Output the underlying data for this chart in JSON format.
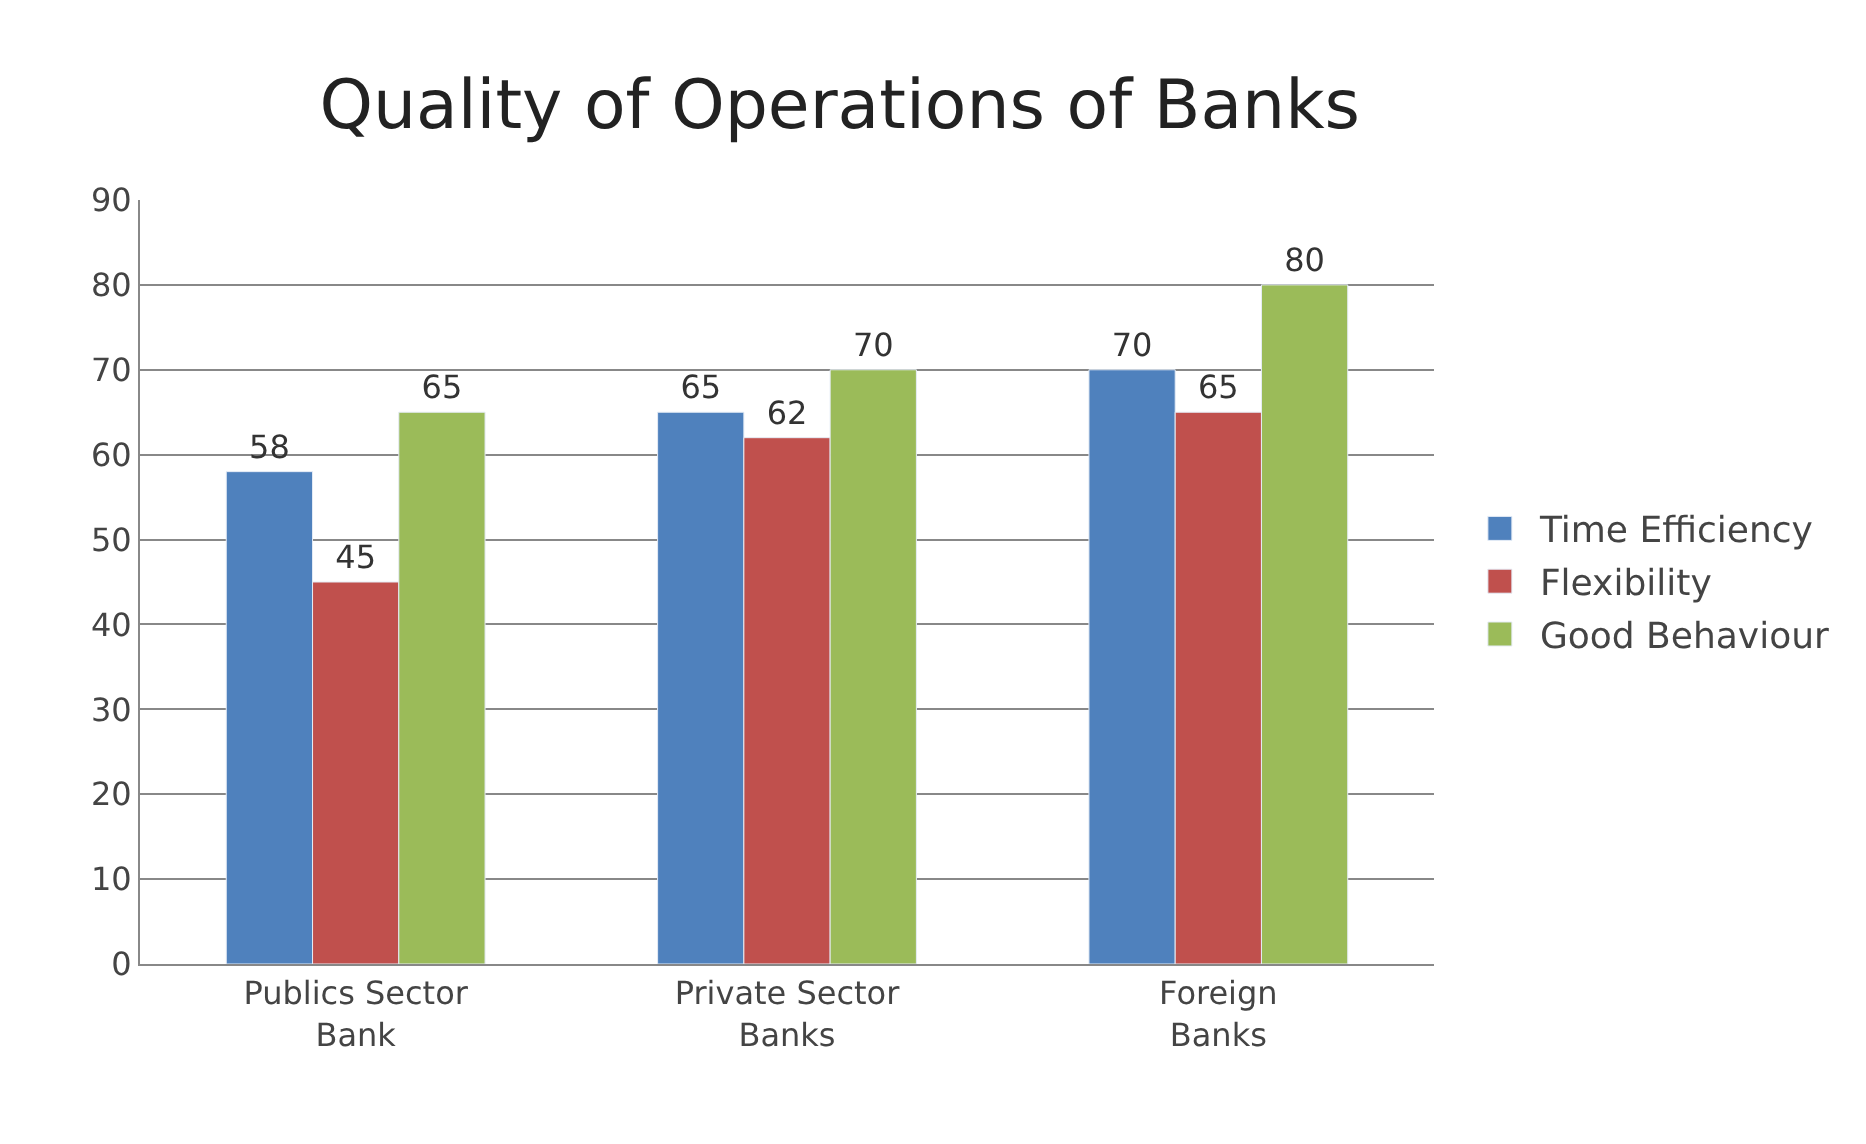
{
  "chart_data": {
    "type": "bar",
    "title": "Quality of Operations of Banks",
    "categories": [
      "Publics Sector Bank",
      "Private Sector Banks",
      "Foreign Banks"
    ],
    "series": [
      {
        "name": "Time Efficiency",
        "color": "#4f81bd",
        "values": [
          58,
          65,
          70
        ]
      },
      {
        "name": "Flexibility",
        "color": "#c0504d",
        "values": [
          45,
          62,
          65
        ]
      },
      {
        "name": "Good Behaviour",
        "color": "#9bbb59",
        "values": [
          65,
          70,
          80
        ]
      }
    ],
    "ylim": [
      0,
      90
    ],
    "yticks": [
      0,
      10,
      20,
      30,
      40,
      50,
      60,
      70,
      80,
      90
    ],
    "grid": "y",
    "legend": "right",
    "data_labels": true
  }
}
